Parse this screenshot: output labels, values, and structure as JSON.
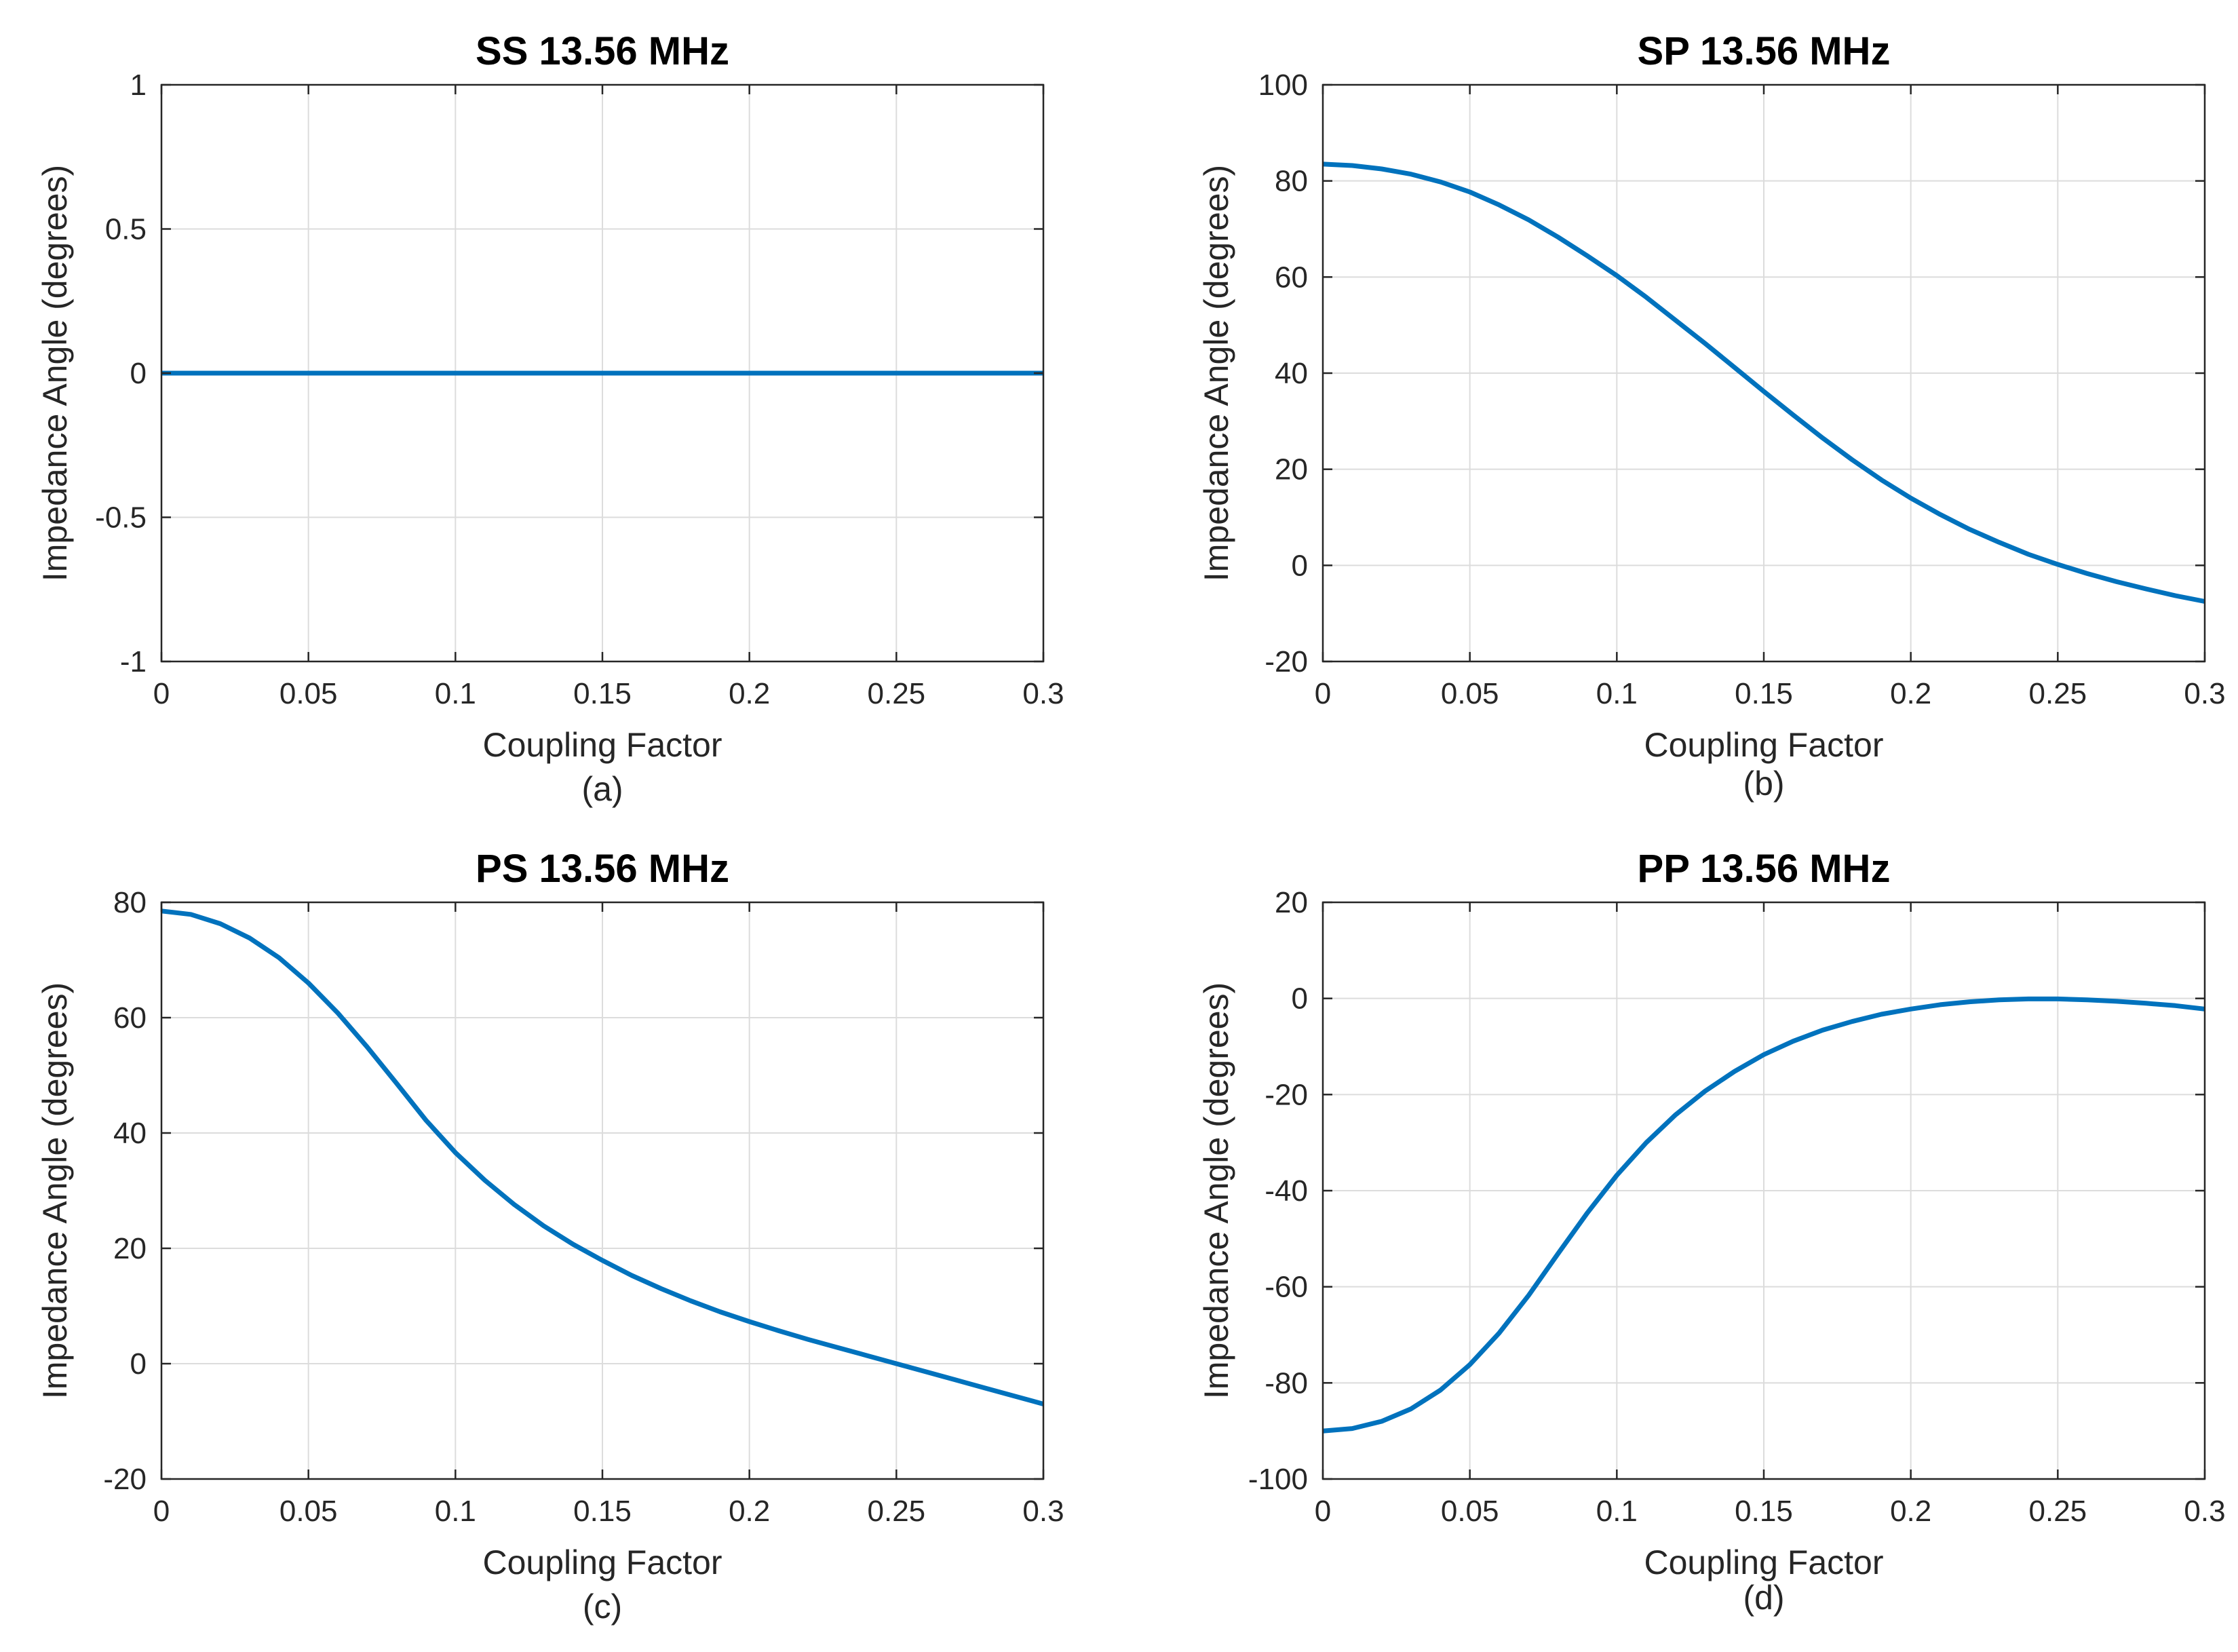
{
  "figure": {
    "line_color": "#0072BD",
    "grid_color": "#dcdcdc",
    "axis_color": "#262626"
  },
  "chart_data": [
    {
      "type": "line",
      "title": "SS 13.56 MHz",
      "xlabel": "Coupling Factor",
      "ylabel": "Impedance Angle (degrees)",
      "caption": "(a)",
      "xlim": [
        0,
        0.3
      ],
      "ylim": [
        -1,
        1
      ],
      "xticks": [
        0,
        0.05,
        0.1,
        0.15,
        0.2,
        0.25,
        0.3
      ],
      "xtick_labels": [
        "0",
        "0.05",
        "0.1",
        "0.15",
        "0.2",
        "0.25",
        "0.3"
      ],
      "yticks": [
        -1,
        -0.5,
        0,
        0.5,
        1
      ],
      "ytick_labels": [
        "-1",
        "-0.5",
        "0",
        "0.5",
        "1"
      ],
      "grid": true,
      "series": [
        {
          "name": "SS",
          "x": [
            0,
            0.05,
            0.1,
            0.15,
            0.2,
            0.25,
            0.3
          ],
          "y": [
            0,
            0,
            0,
            0,
            0,
            0,
            0
          ]
        }
      ]
    },
    {
      "type": "line",
      "title": "SP 13.56 MHz",
      "xlabel": "Coupling Factor",
      "ylabel": "Impedance Angle (degrees)",
      "caption": "(b)",
      "xlim": [
        0,
        0.3
      ],
      "ylim": [
        -20,
        100
      ],
      "xticks": [
        0,
        0.05,
        0.1,
        0.15,
        0.2,
        0.25,
        0.3
      ],
      "xtick_labels": [
        "0",
        "0.05",
        "0.1",
        "0.15",
        "0.2",
        "0.25",
        "0.3"
      ],
      "yticks": [
        -20,
        0,
        20,
        40,
        60,
        80,
        100
      ],
      "ytick_labels": [
        "-20",
        "0",
        "20",
        "40",
        "60",
        "80",
        "100"
      ],
      "grid": true,
      "series": [
        {
          "name": "SP",
          "x": [
            0,
            0.01,
            0.02,
            0.03,
            0.04,
            0.05,
            0.06,
            0.07,
            0.08,
            0.09,
            0.1,
            0.11,
            0.12,
            0.13,
            0.14,
            0.15,
            0.16,
            0.17,
            0.18,
            0.19,
            0.2,
            0.21,
            0.22,
            0.23,
            0.24,
            0.25,
            0.26,
            0.27,
            0.28,
            0.29,
            0.3
          ],
          "y": [
            83.5,
            83.2,
            82.5,
            81.4,
            79.8,
            77.7,
            75.0,
            71.9,
            68.3,
            64.4,
            60.3,
            55.8,
            51.0,
            46.2,
            41.2,
            36.2,
            31.3,
            26.5,
            22.0,
            17.8,
            14.0,
            10.6,
            7.5,
            4.8,
            2.3,
            0.2,
            -1.7,
            -3.4,
            -4.9,
            -6.3,
            -7.5
          ]
        }
      ]
    },
    {
      "type": "line",
      "title": "PS 13.56 MHz",
      "xlabel": "Coupling Factor",
      "ylabel": "Impedance Angle (degrees)",
      "caption": "(c)",
      "xlim": [
        0,
        0.3
      ],
      "ylim": [
        -20,
        80
      ],
      "xticks": [
        0,
        0.05,
        0.1,
        0.15,
        0.2,
        0.25,
        0.3
      ],
      "xtick_labels": [
        "0",
        "0.05",
        "0.1",
        "0.15",
        "0.2",
        "0.25",
        "0.3"
      ],
      "yticks": [
        -20,
        0,
        20,
        40,
        60,
        80
      ],
      "ytick_labels": [
        "-20",
        "0",
        "20",
        "40",
        "60",
        "80"
      ],
      "grid": true,
      "series": [
        {
          "name": "PS",
          "x": [
            0,
            0.01,
            0.02,
            0.03,
            0.04,
            0.05,
            0.06,
            0.07,
            0.08,
            0.09,
            0.1,
            0.11,
            0.12,
            0.13,
            0.14,
            0.15,
            0.16,
            0.17,
            0.18,
            0.19,
            0.2,
            0.21,
            0.22,
            0.23,
            0.24,
            0.25,
            0.26,
            0.27,
            0.28,
            0.29,
            0.3
          ],
          "y": [
            78.5,
            77.9,
            76.3,
            73.8,
            70.4,
            66.0,
            60.8,
            54.9,
            48.6,
            42.2,
            36.6,
            31.8,
            27.6,
            23.9,
            20.7,
            17.9,
            15.3,
            13.0,
            10.9,
            9.0,
            7.3,
            5.7,
            4.2,
            2.8,
            1.4,
            0.0,
            -1.4,
            -2.8,
            -4.2,
            -5.6,
            -7.0
          ]
        }
      ]
    },
    {
      "type": "line",
      "title": "PP 13.56 MHz",
      "xlabel": "Coupling Factor",
      "ylabel": "Impedance Angle (degrees)",
      "caption": "(d)",
      "xlim": [
        0,
        0.3
      ],
      "ylim": [
        -100,
        20
      ],
      "xticks": [
        0,
        0.05,
        0.1,
        0.15,
        0.2,
        0.25,
        0.3
      ],
      "xtick_labels": [
        "0",
        "0.05",
        "0.1",
        "0.15",
        "0.2",
        "0.25",
        "0.3"
      ],
      "yticks": [
        -100,
        -80,
        -60,
        -40,
        -20,
        0,
        20
      ],
      "ytick_labels": [
        "-100",
        "-80",
        "-60",
        "-40",
        "-20",
        "0",
        "20"
      ],
      "grid": true,
      "series": [
        {
          "name": "PP",
          "x": [
            0,
            0.01,
            0.02,
            0.03,
            0.04,
            0.05,
            0.06,
            0.07,
            0.08,
            0.09,
            0.1,
            0.11,
            0.12,
            0.13,
            0.14,
            0.15,
            0.16,
            0.17,
            0.18,
            0.19,
            0.2,
            0.21,
            0.22,
            0.23,
            0.24,
            0.25,
            0.26,
            0.27,
            0.28,
            0.29,
            0.3
          ],
          "y": [
            -90.0,
            -89.5,
            -88.0,
            -85.4,
            -81.5,
            -76.2,
            -69.6,
            -61.8,
            -53.1,
            -44.6,
            -36.8,
            -30.0,
            -24.2,
            -19.3,
            -15.2,
            -11.7,
            -8.9,
            -6.6,
            -4.8,
            -3.3,
            -2.2,
            -1.3,
            -0.7,
            -0.3,
            -0.1,
            -0.1,
            -0.3,
            -0.6,
            -1.0,
            -1.5,
            -2.2
          ]
        }
      ]
    }
  ]
}
